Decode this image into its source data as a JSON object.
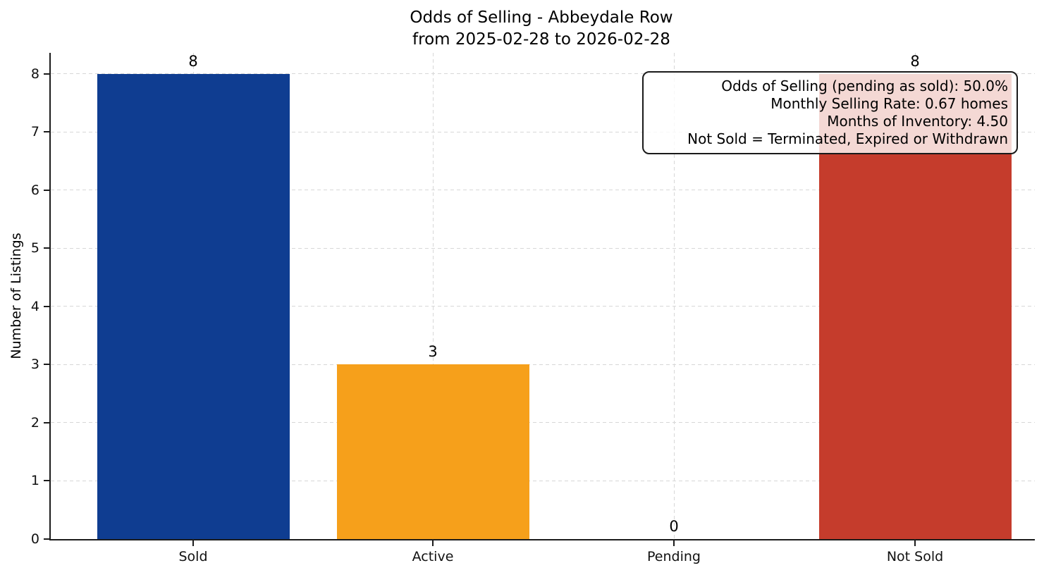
{
  "figure": {
    "title_line1": "Odds of Selling - Abbeydale Row",
    "title_line2": "from 2025-02-28 to 2026-02-28",
    "ylabel": "Number of Listings"
  },
  "chart_data": {
    "type": "bar",
    "title": "Odds of Selling - Abbeydale Row\nfrom 2025-02-28 to 2026-02-28",
    "xlabel": "",
    "ylabel": "Number of Listings",
    "categories": [
      "Sold",
      "Active",
      "Pending",
      "Not Sold"
    ],
    "values": [
      8,
      3,
      0,
      8
    ],
    "value_labels": [
      "8",
      "3",
      "0",
      "8"
    ],
    "bar_colors": [
      "#0f3d91",
      "#f6a01b",
      "#c53c2c",
      "#c53c2c"
    ],
    "ylim": [
      0,
      8.36
    ],
    "yticks": [
      0,
      1,
      2,
      3,
      4,
      5,
      6,
      7,
      8
    ],
    "grid": true,
    "grid_style": "dashed",
    "legend": null
  },
  "annotation": {
    "lines": [
      "Odds of Selling (pending as sold): 50.0%",
      "Monthly Selling Rate: 0.67 homes",
      "Months of Inventory: 4.50",
      "Not Sold = Terminated, Expired or Withdrawn"
    ]
  },
  "colors": {
    "sold_bar": "#0f3d91",
    "active_bar": "#f6a01b",
    "not_sold_bar": "#c53c2c",
    "axis": "#1c1c1c",
    "grid": "#d7d7d7",
    "annotation_bg": "rgba(255,255,255,0.8)",
    "annotation_border": "#1a1a1a",
    "background": "#ffffff",
    "text": "#000000"
  }
}
